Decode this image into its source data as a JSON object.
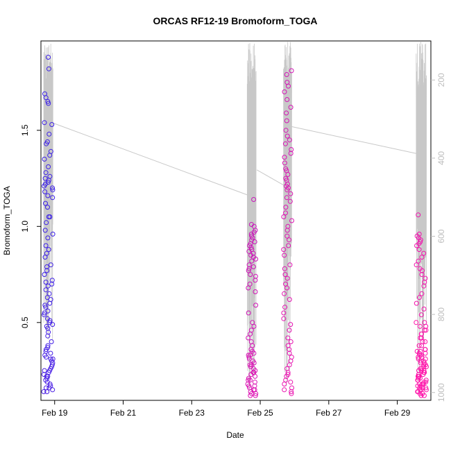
{
  "chart_data": {
    "type": "scatter",
    "title": "ORCAS RF12-19 Bromoform_TOGA",
    "xlabel": "Date",
    "ylabel": "Bromoform_TOGA",
    "xlim": [
      18.6,
      29.98
    ],
    "ylim": [
      0.095,
      1.965
    ],
    "x_ticks": [
      19,
      21,
      23,
      25,
      27,
      29
    ],
    "x_tick_labels": [
      "Feb 19",
      "Feb 21",
      "Feb 23",
      "Feb 25",
      "Feb 27",
      "Feb 29"
    ],
    "y_ticks": [
      0.5,
      1.0,
      1.5
    ],
    "y_tick_labels": [
      "0.5",
      "1.0",
      "1.5"
    ],
    "right_axis": {
      "ylim": [
        100,
        1020
      ],
      "reversed": true,
      "ticks": [
        200,
        400,
        600,
        800,
        1000
      ],
      "tick_labels": [
        "200",
        "400",
        "600",
        "800",
        "1000"
      ],
      "color": "#bdbdbd"
    },
    "grid": false,
    "legend": "none",
    "color_range": [
      "#3a1ee8",
      "#ff10a8"
    ],
    "line_color": "#c8c8c8",
    "line_segments": [
      {
        "x": [
          18.95,
          24.65
        ],
        "y2": [
          310,
          495
        ]
      },
      {
        "x": [
          24.9,
          25.7
        ],
        "y2": [
          430,
          470
        ]
      },
      {
        "x": [
          25.85,
          29.65
        ],
        "y2": [
          318,
          390
        ]
      }
    ],
    "flights": [
      {
        "x0": 18.68,
        "x1": 18.95,
        "color_t": 0.02,
        "y2_min": 100,
        "y2_max": 880,
        "points": [
          1.88,
          1.82,
          1.69,
          1.67,
          1.65,
          1.64,
          1.54,
          1.53,
          1.48,
          1.44,
          1.43,
          1.39,
          1.37,
          1.35,
          1.31,
          1.28,
          1.26,
          1.25,
          1.24,
          1.23,
          1.22,
          1.21,
          1.2,
          1.19,
          1.18,
          1.16,
          1.15,
          1.12,
          1.1,
          1.05,
          1.05,
          1.02,
          0.98,
          0.96,
          0.94,
          0.9,
          0.88,
          0.86,
          0.84,
          0.8,
          0.79,
          0.77,
          0.75,
          0.72,
          0.71,
          0.7,
          0.69,
          0.67,
          0.65,
          0.63,
          0.62,
          0.6,
          0.59,
          0.58,
          0.56,
          0.55,
          0.54,
          0.52,
          0.51,
          0.5,
          0.49,
          0.48,
          0.47,
          0.45,
          0.43,
          0.4,
          0.38,
          0.37,
          0.36,
          0.35,
          0.34,
          0.33,
          0.32,
          0.31,
          0.3,
          0.29,
          0.28,
          0.27,
          0.26,
          0.25,
          0.24,
          0.23,
          0.22,
          0.21,
          0.2,
          0.19,
          0.18,
          0.17,
          0.16,
          0.15,
          0.14,
          0.14,
          0.16,
          0.22,
          0.25,
          0.31
        ]
      },
      {
        "x0": 24.62,
        "x1": 24.88,
        "color_t": 0.78,
        "y2_min": 100,
        "y2_max": 1000,
        "points": [
          1.14,
          1.01,
          1.0,
          0.98,
          0.97,
          0.96,
          0.95,
          0.94,
          0.93,
          0.92,
          0.91,
          0.9,
          0.89,
          0.88,
          0.87,
          0.86,
          0.85,
          0.84,
          0.83,
          0.82,
          0.8,
          0.79,
          0.78,
          0.77,
          0.75,
          0.74,
          0.72,
          0.7,
          0.68,
          0.66,
          0.59,
          0.55,
          0.5,
          0.48,
          0.46,
          0.44,
          0.42,
          0.4,
          0.38,
          0.36,
          0.35,
          0.34,
          0.33,
          0.32,
          0.31,
          0.3,
          0.29,
          0.28,
          0.27,
          0.26,
          0.25,
          0.24,
          0.23,
          0.22,
          0.21,
          0.2,
          0.19,
          0.18,
          0.17,
          0.16,
          0.15,
          0.14,
          0.13,
          0.12,
          0.12,
          0.13,
          0.15,
          0.17,
          0.2,
          0.24,
          0.28,
          0.33
        ]
      },
      {
        "x0": 25.68,
        "x1": 25.92,
        "color_t": 0.84,
        "y2_min": 100,
        "y2_max": 1000,
        "points": [
          1.81,
          1.79,
          1.75,
          1.73,
          1.7,
          1.66,
          1.62,
          1.59,
          1.55,
          1.5,
          1.47,
          1.45,
          1.43,
          1.4,
          1.38,
          1.36,
          1.33,
          1.3,
          1.29,
          1.27,
          1.25,
          1.24,
          1.22,
          1.21,
          1.2,
          1.19,
          1.17,
          1.15,
          1.13,
          1.1,
          1.07,
          1.05,
          1.03,
          1.0,
          0.98,
          0.95,
          0.93,
          0.9,
          0.88,
          0.85,
          0.8,
          0.78,
          0.75,
          0.73,
          0.7,
          0.68,
          0.65,
          0.62,
          0.58,
          0.55,
          0.52,
          0.49,
          0.46,
          0.42,
          0.4,
          0.38,
          0.36,
          0.34,
          0.32,
          0.3,
          0.28,
          0.26,
          0.24,
          0.22,
          0.2,
          0.18,
          0.16,
          0.14,
          0.13,
          0.15,
          0.19,
          0.23
        ]
      },
      {
        "x0": 29.55,
        "x1": 29.85,
        "color_t": 0.98,
        "y2_min": 100,
        "y2_max": 960,
        "points": [
          1.06,
          0.96,
          0.95,
          0.94,
          0.93,
          0.92,
          0.91,
          0.9,
          0.88,
          0.86,
          0.84,
          0.82,
          0.8,
          0.78,
          0.77,
          0.75,
          0.73,
          0.71,
          0.69,
          0.65,
          0.63,
          0.6,
          0.57,
          0.54,
          0.5,
          0.48,
          0.46,
          0.44,
          0.42,
          0.4,
          0.38,
          0.36,
          0.35,
          0.34,
          0.33,
          0.32,
          0.31,
          0.3,
          0.29,
          0.28,
          0.27,
          0.26,
          0.25,
          0.24,
          0.23,
          0.22,
          0.21,
          0.2,
          0.19,
          0.18,
          0.17,
          0.16,
          0.15,
          0.14,
          0.13,
          0.12,
          0.12,
          0.13,
          0.14,
          0.15,
          0.16,
          0.17,
          0.18,
          0.19,
          0.2,
          0.21,
          0.22,
          0.23,
          0.24,
          0.25,
          0.26,
          0.27,
          0.28,
          0.29,
          0.3,
          0.31,
          0.32,
          0.33,
          0.34,
          0.35,
          0.36,
          0.38,
          0.4,
          0.42,
          0.44,
          0.46,
          0.48,
          0.5,
          0.25,
          0.22,
          0.2,
          0.18,
          0.16,
          0.15
        ]
      }
    ]
  }
}
